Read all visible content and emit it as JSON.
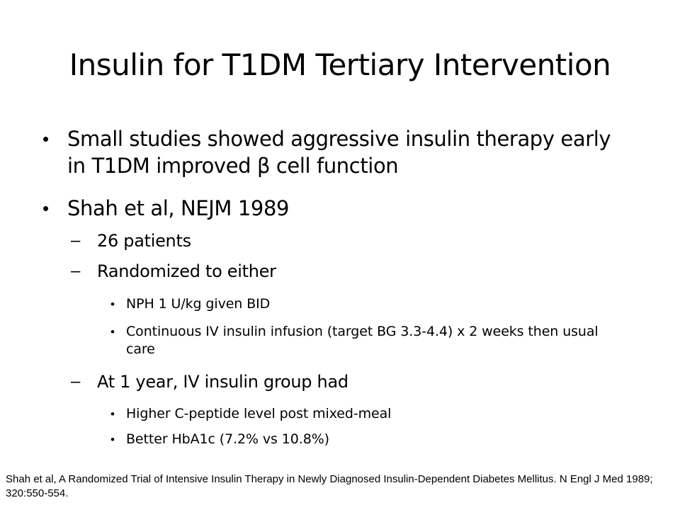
{
  "slide": {
    "title": "Insulin for T1DM Tertiary Intervention",
    "bullets": [
      {
        "level": 1,
        "marker": "•",
        "text": "Small studies showed aggressive insulin therapy early in T1DM  improved β cell function"
      },
      {
        "level": 1,
        "marker": "•",
        "text": "Shah et al, NEJM 1989"
      },
      {
        "level": 2,
        "marker": "–",
        "text": "26 patients"
      },
      {
        "level": 2,
        "marker": "–",
        "text": "Randomized to either"
      },
      {
        "level": 3,
        "marker": "•",
        "text": "NPH 1 U/kg given BID"
      },
      {
        "level": 3,
        "marker": "•",
        "text": "Continuous IV insulin infusion (target BG 3.3-4.4) x 2 weeks then usual care"
      },
      {
        "level": 2,
        "marker": "–",
        "text": "At 1 year, IV insulin group had"
      },
      {
        "level": 3,
        "marker": "•",
        "text": "Higher C-peptide level post mixed-meal"
      },
      {
        "level": 3,
        "marker": "•",
        "text": "Better HbA1c (7.2% vs 10.8%)"
      }
    ],
    "footnote": "Shah et al, A Randomized Trial of Intensive Insulin Therapy in Newly Diagnosed Insulin-Dependent Diabetes Mellitus. N Engl J Med 1989; 320:550-554."
  }
}
